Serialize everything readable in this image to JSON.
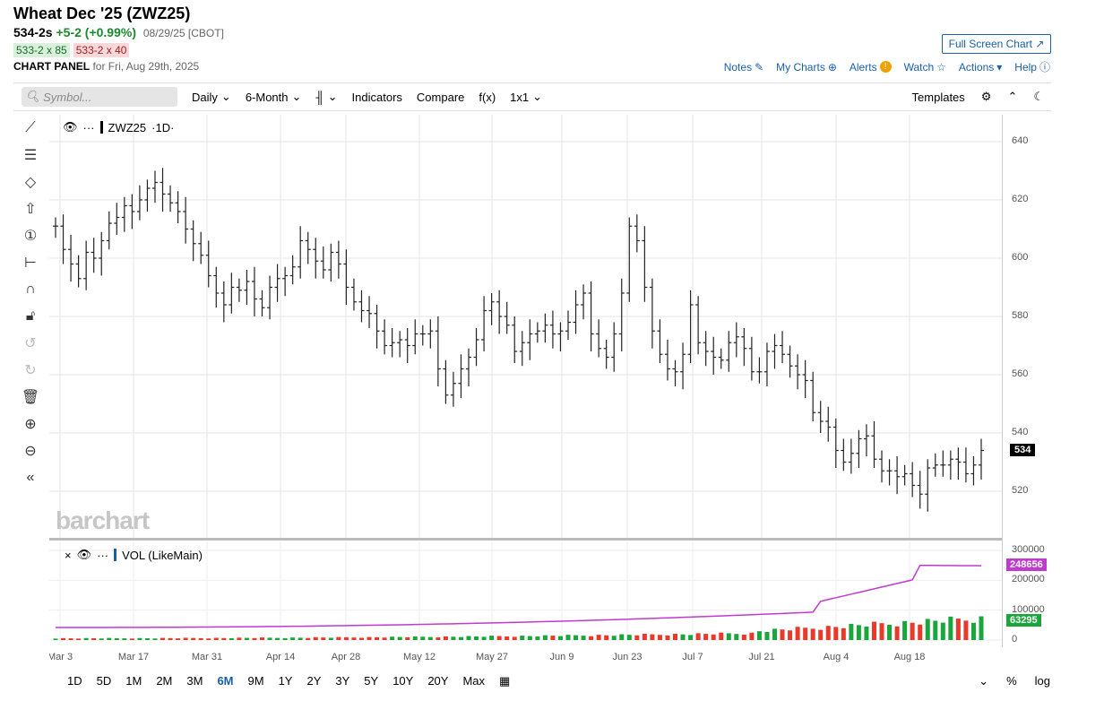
{
  "header": {
    "title": "Wheat Dec '25 (ZWZ25)",
    "last": "534-2s",
    "change": "+5-2 (+0.99%)",
    "date": "08/29/25 [CBOT]",
    "bid": "533-2 x 85",
    "ask": "533-2 x 40",
    "panel_label": "CHART PANEL",
    "panel_date": "for Fri, Aug 29th, 2025",
    "fullscreen": "Full Screen Chart"
  },
  "links": {
    "notes": "Notes",
    "mycharts": "My Charts",
    "alerts": "Alerts",
    "watch": "Watch",
    "actions": "Actions",
    "help": "Help"
  },
  "toolbar": {
    "search_placeholder": "Symbol...",
    "interval": "Daily",
    "range": "6-Month",
    "indicators": "Indicators",
    "compare": "Compare",
    "fx": "f(x)",
    "layout": "1x1",
    "templates": "Templates"
  },
  "legend": {
    "symbol": "ZWZ25",
    "interval": "·1D·",
    "vol": "VOL (LikeMain)"
  },
  "watermark": "barchart",
  "colors": {
    "up": "#1aa63a",
    "down": "#e8392a",
    "ma": "#c03ad0",
    "accent": "#1a5fa8"
  },
  "price_axis": {
    "labels": [
      "640",
      "620",
      "600",
      "580",
      "560",
      "540",
      "520"
    ],
    "current": "534"
  },
  "vol_axis": {
    "labels": [
      "300000",
      "200000",
      "100000",
      "0"
    ],
    "ma": "248656",
    "current": "63295"
  },
  "x_labels": [
    "Mar 3",
    "Mar 17",
    "Mar 31",
    "Apr 14",
    "Apr 28",
    "May 12",
    "May 27",
    "Jun 9",
    "Jun 23",
    "Jul 7",
    "Jul 21",
    "Aug 4",
    "Aug 18"
  ],
  "periods": [
    "1D",
    "5D",
    "1M",
    "2M",
    "3M",
    "6M",
    "9M",
    "1Y",
    "2Y",
    "3Y",
    "5Y",
    "10Y",
    "20Y",
    "Max"
  ],
  "active_period": "6M",
  "bottom_right": {
    "pct": "%",
    "log": "log"
  },
  "chart_data": {
    "type": "ohlc",
    "ylim": [
      510,
      645
    ],
    "close": [
      611,
      603,
      598,
      593,
      602,
      600,
      606,
      612,
      614,
      618,
      616,
      620,
      624,
      626,
      622,
      619,
      616,
      610,
      605,
      601,
      594,
      588,
      584,
      590,
      589,
      592,
      586,
      583,
      590,
      593,
      594,
      597,
      606,
      603,
      599,
      596,
      602,
      598,
      590,
      585,
      582,
      581,
      575,
      570,
      571,
      572,
      570,
      574,
      574,
      575,
      562,
      553,
      557,
      562,
      566,
      572,
      582,
      585,
      580,
      577,
      568,
      571,
      574,
      575,
      577,
      574,
      575,
      578,
      584,
      588,
      574,
      569,
      566,
      574,
      588,
      611,
      606,
      590,
      575,
      567,
      562,
      561,
      567,
      584,
      571,
      568,
      566,
      565,
      571,
      573,
      569,
      561,
      561,
      568,
      570,
      567,
      563,
      560,
      558,
      547,
      544,
      542,
      534,
      530,
      533,
      538,
      539,
      531,
      527,
      527,
      525,
      526,
      522,
      519,
      528,
      529,
      529,
      531,
      530,
      526,
      529,
      534
    ],
    "volume_ma_note": "volume shown as bars with moving average line"
  }
}
